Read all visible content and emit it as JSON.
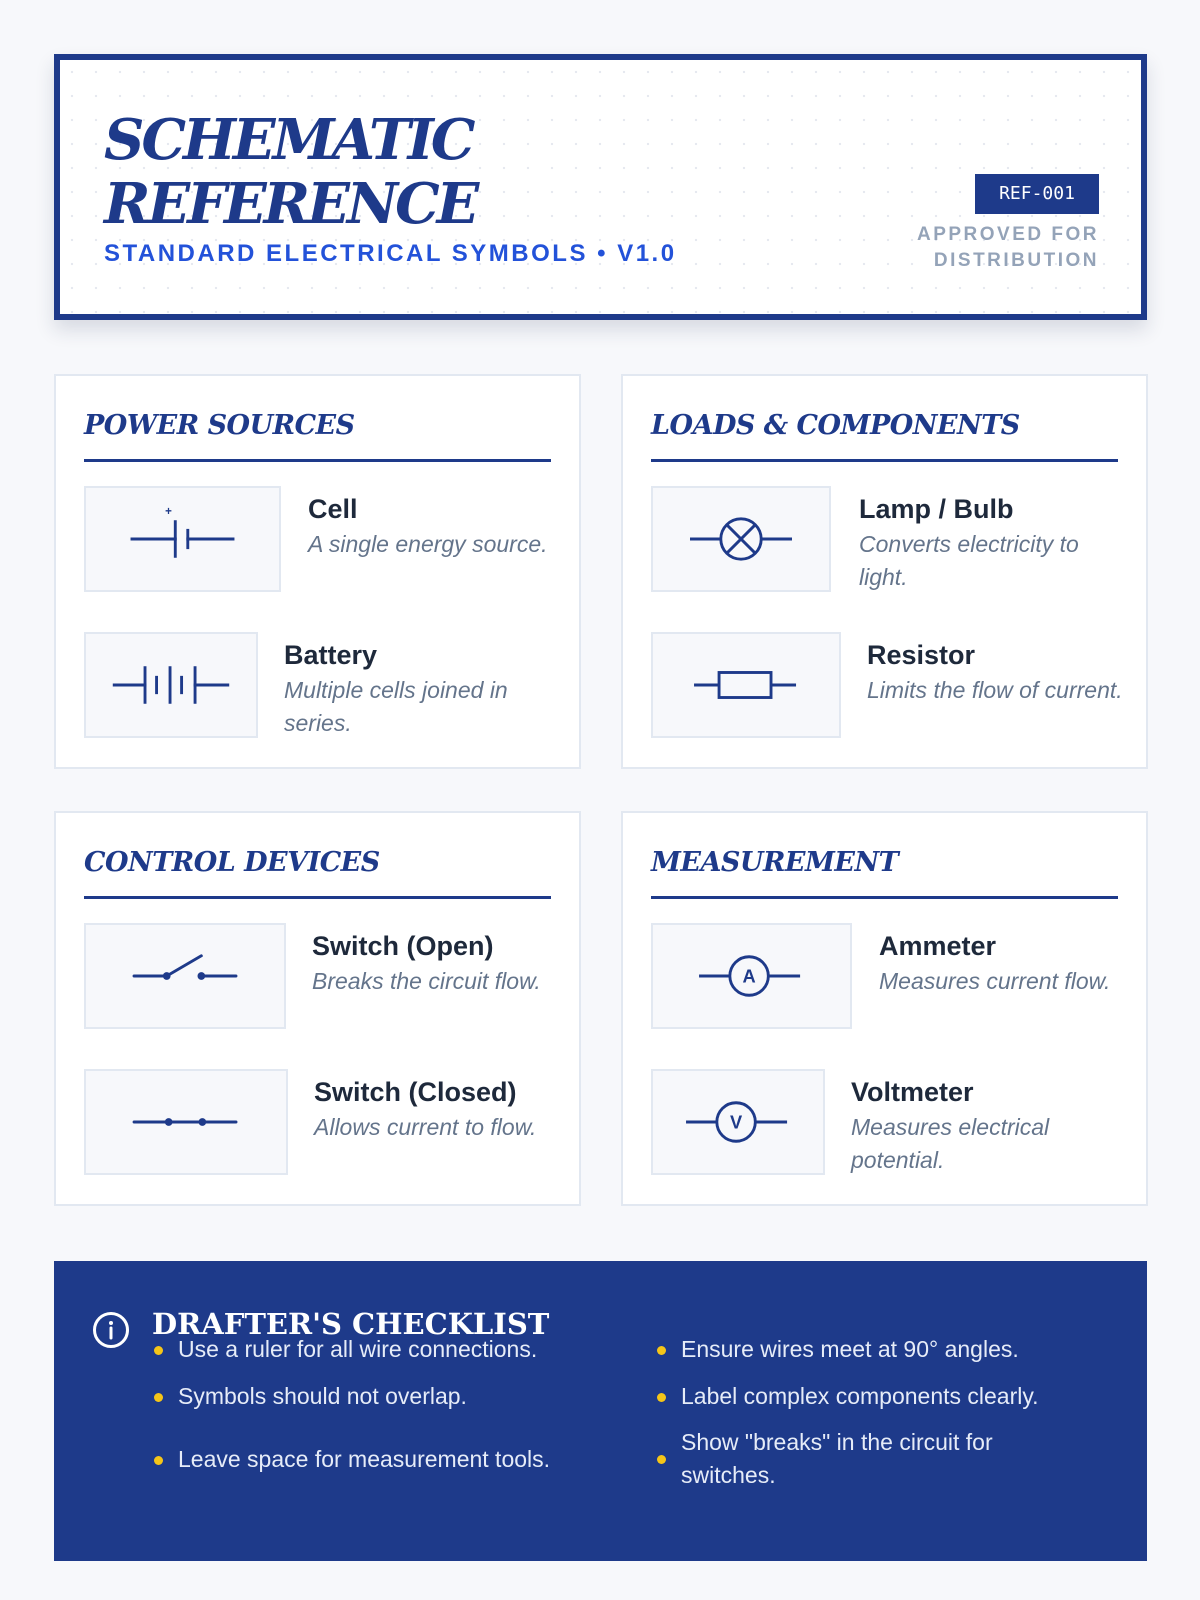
{
  "header": {
    "title_line1": "SCHEMATIC",
    "title_line2": "REFERENCE",
    "subtitle": "STANDARD ELECTRICAL SYMBOLS • V1.0",
    "ref_code": "REF-001",
    "approved_line1": "APPROVED FOR",
    "approved_line2": "DISTRIBUTION"
  },
  "sections": [
    {
      "title": "POWER SOURCES",
      "items": [
        {
          "name": "Cell",
          "description": "A single energy source.",
          "symbol": "cell-icon",
          "plus_sign": "+"
        },
        {
          "name": "Battery",
          "description": "Multiple cells joined in series.",
          "symbol": "battery-icon"
        }
      ]
    },
    {
      "title": "LOADS & COMPONENTS",
      "items": [
        {
          "name": "Lamp / Bulb",
          "description": "Converts electricity to light.",
          "symbol": "lamp-icon"
        },
        {
          "name": "Resistor",
          "description": "Limits the flow of current.",
          "symbol": "resistor-icon"
        }
      ]
    },
    {
      "title": "CONTROL DEVICES",
      "items": [
        {
          "name": "Switch (Open)",
          "description": "Breaks the circuit flow.",
          "symbol": "open-switch-icon"
        },
        {
          "name": "Switch (Closed)",
          "description": "Allows current to flow.",
          "symbol": "closed-switch-icon"
        }
      ]
    },
    {
      "title": "MEASUREMENT",
      "items": [
        {
          "name": "Ammeter",
          "description": "Measures current flow.",
          "symbol": "ammeter-icon",
          "symbol_letter": "A"
        },
        {
          "name": "Voltmeter",
          "description": "Measures electrical potential.",
          "symbol": "voltmeter-icon",
          "symbol_letter": "V"
        }
      ]
    }
  ],
  "checklist": {
    "title": "DRAFTER'S CHECKLIST",
    "icon": "info-icon",
    "items": [
      "Use a ruler for all wire connections.",
      "Ensure wires meet at 90° angles.",
      "Symbols should not overlap.",
      "Label complex components clearly.",
      "Leave space for measurement tools.",
      "Show \"breaks\" in the circuit for switches."
    ]
  },
  "colors": {
    "primary": "#1e3a8a",
    "accent_blue": "#2352d9",
    "bullet": "#f5c518",
    "muted": "#94a3b8",
    "background": "#f7f8fb"
  }
}
